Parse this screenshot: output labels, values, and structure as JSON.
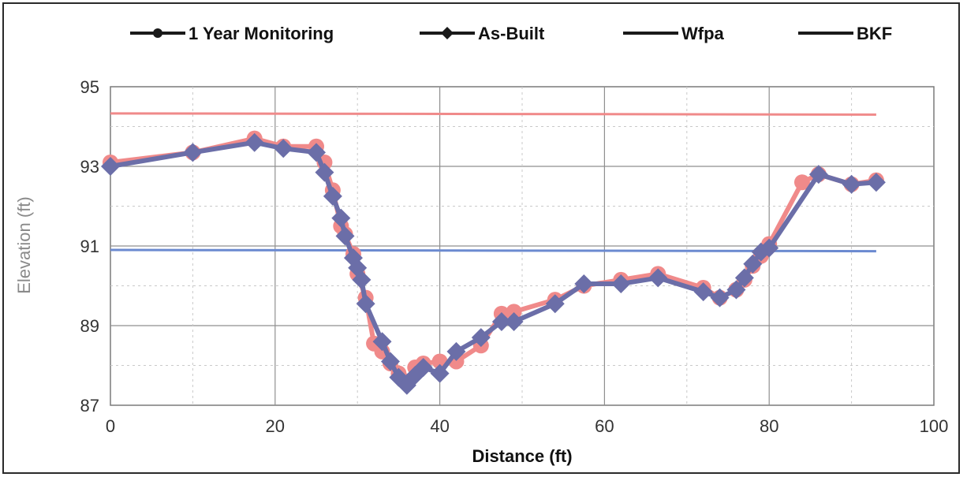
{
  "chart_data": {
    "type": "line",
    "xlabel": "Distance  (ft)",
    "ylabel": "Elevation (ft)",
    "xlim": [
      0,
      100
    ],
    "ylim": [
      87,
      95
    ],
    "x_ticks": [
      "0",
      "20",
      "40",
      "60",
      "80",
      "100"
    ],
    "y_ticks": [
      "87",
      "89",
      "91",
      "93",
      "95"
    ],
    "grid": true,
    "legend_position": "top",
    "series": [
      {
        "name": "1 Year Monitoring",
        "color": "#f08a8a",
        "marker": "circle",
        "x": [
          0,
          10,
          17.5,
          21,
          25,
          26,
          27,
          28,
          28.5,
          29.5,
          30,
          31,
          32,
          33,
          34,
          35,
          36,
          37,
          38,
          40,
          42,
          45,
          47.5,
          49,
          54,
          57.5,
          62,
          66.5,
          72,
          74,
          76,
          77,
          78,
          79,
          80,
          84,
          86,
          90,
          93
        ],
        "y": [
          93.1,
          93.35,
          93.7,
          93.5,
          93.5,
          93.1,
          92.4,
          91.5,
          91.3,
          90.8,
          90.3,
          89.7,
          88.55,
          88.35,
          88.05,
          87.8,
          87.6,
          87.95,
          88.05,
          88.1,
          88.1,
          88.5,
          89.3,
          89.35,
          89.65,
          90.0,
          90.15,
          90.3,
          89.95,
          89.7,
          89.9,
          90.15,
          90.5,
          90.75,
          91.05,
          92.6,
          92.8,
          92.55,
          92.65
        ]
      },
      {
        "name": "As-Built",
        "color": "#6b6ea8",
        "marker": "diamond",
        "x": [
          0,
          10,
          17.5,
          21,
          25,
          26,
          27,
          28,
          28.5,
          29.5,
          30,
          30.5,
          31,
          33,
          34,
          35,
          36,
          37,
          38,
          40,
          42,
          45,
          47.5,
          49,
          54,
          57.5,
          62,
          66.5,
          72,
          74,
          76,
          77,
          78,
          79,
          80,
          86,
          90,
          93
        ],
        "y": [
          93.0,
          93.35,
          93.6,
          93.45,
          93.35,
          92.85,
          92.25,
          91.7,
          91.25,
          90.7,
          90.45,
          90.15,
          89.55,
          88.6,
          88.1,
          87.7,
          87.5,
          87.75,
          87.95,
          87.8,
          88.35,
          88.7,
          89.1,
          89.1,
          89.55,
          90.05,
          90.05,
          90.2,
          89.85,
          89.7,
          89.9,
          90.2,
          90.55,
          90.85,
          90.95,
          92.8,
          92.55,
          92.6
        ]
      },
      {
        "name": "Wfpa",
        "color": "#f08a8a",
        "marker": "none",
        "x": [
          0,
          93
        ],
        "y": [
          94.33,
          94.3
        ]
      },
      {
        "name": "BKF",
        "color": "#6b8ad0",
        "marker": "none",
        "x": [
          0,
          93
        ],
        "y": [
          90.9,
          90.87
        ]
      }
    ]
  }
}
